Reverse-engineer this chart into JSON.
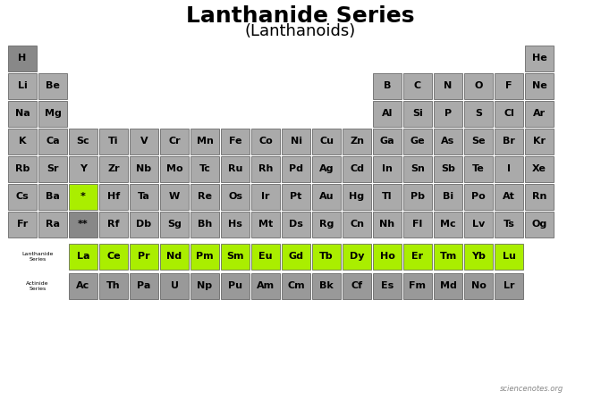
{
  "title": "Lanthanide Series",
  "subtitle": "(Lanthanoids)",
  "title_fontsize": 18,
  "subtitle_fontsize": 13,
  "cell_color_default": "#aaaaaa",
  "cell_color_lanthanide": "#aaee00",
  "cell_color_h": "#888888",
  "cell_color_actinide": "#999999",
  "cell_color_lan_placeholder": "#aaee00",
  "cell_color_act_placeholder": "#888888",
  "elements": [
    {
      "symbol": "H",
      "row": 1,
      "col": 1,
      "color": "#888888"
    },
    {
      "symbol": "He",
      "row": 1,
      "col": 18,
      "color": "#aaaaaa"
    },
    {
      "symbol": "Li",
      "row": 2,
      "col": 1,
      "color": "#aaaaaa"
    },
    {
      "symbol": "Be",
      "row": 2,
      "col": 2,
      "color": "#aaaaaa"
    },
    {
      "symbol": "B",
      "row": 2,
      "col": 13,
      "color": "#aaaaaa"
    },
    {
      "symbol": "C",
      "row": 2,
      "col": 14,
      "color": "#aaaaaa"
    },
    {
      "symbol": "N",
      "row": 2,
      "col": 15,
      "color": "#aaaaaa"
    },
    {
      "symbol": "O",
      "row": 2,
      "col": 16,
      "color": "#aaaaaa"
    },
    {
      "symbol": "F",
      "row": 2,
      "col": 17,
      "color": "#aaaaaa"
    },
    {
      "symbol": "Ne",
      "row": 2,
      "col": 18,
      "color": "#aaaaaa"
    },
    {
      "symbol": "Na",
      "row": 3,
      "col": 1,
      "color": "#aaaaaa"
    },
    {
      "symbol": "Mg",
      "row": 3,
      "col": 2,
      "color": "#aaaaaa"
    },
    {
      "symbol": "Al",
      "row": 3,
      "col": 13,
      "color": "#aaaaaa"
    },
    {
      "symbol": "Si",
      "row": 3,
      "col": 14,
      "color": "#aaaaaa"
    },
    {
      "symbol": "P",
      "row": 3,
      "col": 15,
      "color": "#aaaaaa"
    },
    {
      "symbol": "S",
      "row": 3,
      "col": 16,
      "color": "#aaaaaa"
    },
    {
      "symbol": "Cl",
      "row": 3,
      "col": 17,
      "color": "#aaaaaa"
    },
    {
      "symbol": "Ar",
      "row": 3,
      "col": 18,
      "color": "#aaaaaa"
    },
    {
      "symbol": "K",
      "row": 4,
      "col": 1,
      "color": "#aaaaaa"
    },
    {
      "symbol": "Ca",
      "row": 4,
      "col": 2,
      "color": "#aaaaaa"
    },
    {
      "symbol": "Sc",
      "row": 4,
      "col": 3,
      "color": "#aaaaaa"
    },
    {
      "symbol": "Ti",
      "row": 4,
      "col": 4,
      "color": "#aaaaaa"
    },
    {
      "symbol": "V",
      "row": 4,
      "col": 5,
      "color": "#aaaaaa"
    },
    {
      "symbol": "Cr",
      "row": 4,
      "col": 6,
      "color": "#aaaaaa"
    },
    {
      "symbol": "Mn",
      "row": 4,
      "col": 7,
      "color": "#aaaaaa"
    },
    {
      "symbol": "Fe",
      "row": 4,
      "col": 8,
      "color": "#aaaaaa"
    },
    {
      "symbol": "Co",
      "row": 4,
      "col": 9,
      "color": "#aaaaaa"
    },
    {
      "symbol": "Ni",
      "row": 4,
      "col": 10,
      "color": "#aaaaaa"
    },
    {
      "symbol": "Cu",
      "row": 4,
      "col": 11,
      "color": "#aaaaaa"
    },
    {
      "symbol": "Zn",
      "row": 4,
      "col": 12,
      "color": "#aaaaaa"
    },
    {
      "symbol": "Ga",
      "row": 4,
      "col": 13,
      "color": "#aaaaaa"
    },
    {
      "symbol": "Ge",
      "row": 4,
      "col": 14,
      "color": "#aaaaaa"
    },
    {
      "symbol": "As",
      "row": 4,
      "col": 15,
      "color": "#aaaaaa"
    },
    {
      "symbol": "Se",
      "row": 4,
      "col": 16,
      "color": "#aaaaaa"
    },
    {
      "symbol": "Br",
      "row": 4,
      "col": 17,
      "color": "#aaaaaa"
    },
    {
      "symbol": "Kr",
      "row": 4,
      "col": 18,
      "color": "#aaaaaa"
    },
    {
      "symbol": "Rb",
      "row": 5,
      "col": 1,
      "color": "#aaaaaa"
    },
    {
      "symbol": "Sr",
      "row": 5,
      "col": 2,
      "color": "#aaaaaa"
    },
    {
      "symbol": "Y",
      "row": 5,
      "col": 3,
      "color": "#aaaaaa"
    },
    {
      "symbol": "Zr",
      "row": 5,
      "col": 4,
      "color": "#aaaaaa"
    },
    {
      "symbol": "Nb",
      "row": 5,
      "col": 5,
      "color": "#aaaaaa"
    },
    {
      "symbol": "Mo",
      "row": 5,
      "col": 6,
      "color": "#aaaaaa"
    },
    {
      "symbol": "Tc",
      "row": 5,
      "col": 7,
      "color": "#aaaaaa"
    },
    {
      "symbol": "Ru",
      "row": 5,
      "col": 8,
      "color": "#aaaaaa"
    },
    {
      "symbol": "Rh",
      "row": 5,
      "col": 9,
      "color": "#aaaaaa"
    },
    {
      "symbol": "Pd",
      "row": 5,
      "col": 10,
      "color": "#aaaaaa"
    },
    {
      "symbol": "Ag",
      "row": 5,
      "col": 11,
      "color": "#aaaaaa"
    },
    {
      "symbol": "Cd",
      "row": 5,
      "col": 12,
      "color": "#aaaaaa"
    },
    {
      "symbol": "In",
      "row": 5,
      "col": 13,
      "color": "#aaaaaa"
    },
    {
      "symbol": "Sn",
      "row": 5,
      "col": 14,
      "color": "#aaaaaa"
    },
    {
      "symbol": "Sb",
      "row": 5,
      "col": 15,
      "color": "#aaaaaa"
    },
    {
      "symbol": "Te",
      "row": 5,
      "col": 16,
      "color": "#aaaaaa"
    },
    {
      "symbol": "I",
      "row": 5,
      "col": 17,
      "color": "#aaaaaa"
    },
    {
      "symbol": "Xe",
      "row": 5,
      "col": 18,
      "color": "#aaaaaa"
    },
    {
      "symbol": "Cs",
      "row": 6,
      "col": 1,
      "color": "#aaaaaa"
    },
    {
      "symbol": "Ba",
      "row": 6,
      "col": 2,
      "color": "#aaaaaa"
    },
    {
      "symbol": "Hf",
      "row": 6,
      "col": 4,
      "color": "#aaaaaa"
    },
    {
      "symbol": "Ta",
      "row": 6,
      "col": 5,
      "color": "#aaaaaa"
    },
    {
      "symbol": "W",
      "row": 6,
      "col": 6,
      "color": "#aaaaaa"
    },
    {
      "symbol": "Re",
      "row": 6,
      "col": 7,
      "color": "#aaaaaa"
    },
    {
      "symbol": "Os",
      "row": 6,
      "col": 8,
      "color": "#aaaaaa"
    },
    {
      "symbol": "Ir",
      "row": 6,
      "col": 9,
      "color": "#aaaaaa"
    },
    {
      "symbol": "Pt",
      "row": 6,
      "col": 10,
      "color": "#aaaaaa"
    },
    {
      "symbol": "Au",
      "row": 6,
      "col": 11,
      "color": "#aaaaaa"
    },
    {
      "symbol": "Hg",
      "row": 6,
      "col": 12,
      "color": "#aaaaaa"
    },
    {
      "symbol": "Tl",
      "row": 6,
      "col": 13,
      "color": "#aaaaaa"
    },
    {
      "symbol": "Pb",
      "row": 6,
      "col": 14,
      "color": "#aaaaaa"
    },
    {
      "symbol": "Bi",
      "row": 6,
      "col": 15,
      "color": "#aaaaaa"
    },
    {
      "symbol": "Po",
      "row": 6,
      "col": 16,
      "color": "#aaaaaa"
    },
    {
      "symbol": "At",
      "row": 6,
      "col": 17,
      "color": "#aaaaaa"
    },
    {
      "symbol": "Rn",
      "row": 6,
      "col": 18,
      "color": "#aaaaaa"
    },
    {
      "symbol": "Fr",
      "row": 7,
      "col": 1,
      "color": "#aaaaaa"
    },
    {
      "symbol": "Ra",
      "row": 7,
      "col": 2,
      "color": "#aaaaaa"
    },
    {
      "symbol": "Rf",
      "row": 7,
      "col": 4,
      "color": "#aaaaaa"
    },
    {
      "symbol": "Db",
      "row": 7,
      "col": 5,
      "color": "#aaaaaa"
    },
    {
      "symbol": "Sg",
      "row": 7,
      "col": 6,
      "color": "#aaaaaa"
    },
    {
      "symbol": "Bh",
      "row": 7,
      "col": 7,
      "color": "#aaaaaa"
    },
    {
      "symbol": "Hs",
      "row": 7,
      "col": 8,
      "color": "#aaaaaa"
    },
    {
      "symbol": "Mt",
      "row": 7,
      "col": 9,
      "color": "#aaaaaa"
    },
    {
      "symbol": "Ds",
      "row": 7,
      "col": 10,
      "color": "#aaaaaa"
    },
    {
      "symbol": "Rg",
      "row": 7,
      "col": 11,
      "color": "#aaaaaa"
    },
    {
      "symbol": "Cn",
      "row": 7,
      "col": 12,
      "color": "#aaaaaa"
    },
    {
      "symbol": "Nh",
      "row": 7,
      "col": 13,
      "color": "#aaaaaa"
    },
    {
      "symbol": "Fl",
      "row": 7,
      "col": 14,
      "color": "#aaaaaa"
    },
    {
      "symbol": "Mc",
      "row": 7,
      "col": 15,
      "color": "#aaaaaa"
    },
    {
      "symbol": "Lv",
      "row": 7,
      "col": 16,
      "color": "#aaaaaa"
    },
    {
      "symbol": "Ts",
      "row": 7,
      "col": 17,
      "color": "#aaaaaa"
    },
    {
      "symbol": "Og",
      "row": 7,
      "col": 18,
      "color": "#aaaaaa"
    }
  ],
  "lanthanides": [
    "La",
    "Ce",
    "Pr",
    "Nd",
    "Pm",
    "Sm",
    "Eu",
    "Gd",
    "Tb",
    "Dy",
    "Ho",
    "Er",
    "Tm",
    "Yb",
    "Lu"
  ],
  "actinides": [
    "Ac",
    "Th",
    "Pa",
    "U",
    "Np",
    "Pu",
    "Am",
    "Cm",
    "Bk",
    "Cf",
    "Es",
    "Fm",
    "Md",
    "No",
    "Lr"
  ],
  "watermark": "sciencenotes.org"
}
